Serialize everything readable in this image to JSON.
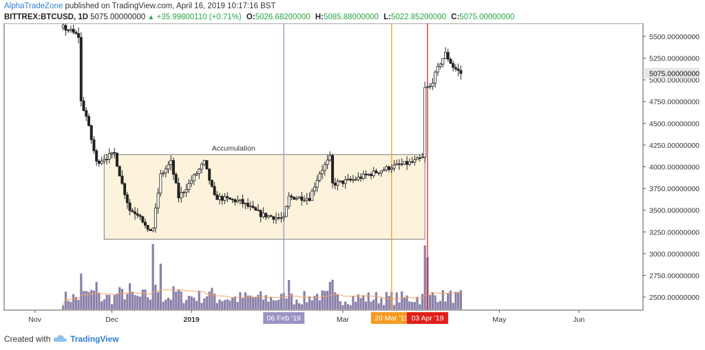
{
  "header": {
    "author": "AlphaTradeZone",
    "published_text": "published on TradingView.com, April 16, 2019 10:17:16 BST",
    "symbol": "BITTREX:BTCUSD, 1D",
    "last": "5075.00000000",
    "change": "+35.99800110 (+0.71%)",
    "open_label": "O:",
    "open": "5026.68200000",
    "high_label": "H:",
    "high": "5085.88000000",
    "low_label": "L:",
    "low": "5022.85200000",
    "close_label": "C:",
    "close": "5075.00000000"
  },
  "footer": {
    "created_with": "Created with",
    "brand": "TradingView"
  },
  "colors": {
    "candle": "#222222",
    "volume": "#8a7fa8",
    "volume_ma": "#f5a25d",
    "zone_fill": "#fdf3dc",
    "zone_border": "#8c8c8c",
    "line_feb": "#9b93c4",
    "line_mar20": "#f59a23",
    "line_apr03": "#e0201b",
    "badge_feb": "#6a5aa5",
    "badge_mar20": "#f59a23",
    "badge_apr03": "#e0201b"
  },
  "chart_data": {
    "type": "candlestick",
    "ylim": [
      2350,
      5650
    ],
    "y_ticks": [
      2500,
      2750,
      3000,
      3250,
      3500,
      3750,
      4000,
      4250,
      4500,
      4750,
      5000,
      5250,
      5500
    ],
    "y_tick_labels": [
      "2500.00000000",
      "2750.00000000",
      "3000.00000000",
      "3250.00000000",
      "3500.00000000",
      "3750.00000000",
      "4000.00000000",
      "4250.00000000",
      "4500.00000000",
      "4750.00000000",
      "5000.00000000",
      "5250.00000000",
      "5500.00000000"
    ],
    "last_price": 5075,
    "last_price_label": "5075.00000000",
    "x_start": "2018-10-20",
    "x_end": "2019-06-26",
    "x_labels": [
      {
        "date": "2018-11-01",
        "text": "Nov",
        "bold": false
      },
      {
        "date": "2018-12-01",
        "text": "Dec",
        "bold": false
      },
      {
        "date": "2019-01-01",
        "text": "2019",
        "bold": true
      },
      {
        "date": "2019-03-01",
        "text": "Mar",
        "bold": false
      },
      {
        "date": "2019-05-01",
        "text": "May",
        "bold": false
      },
      {
        "date": "2019-06-01",
        "text": "Jun",
        "bold": false
      }
    ],
    "price_path": [
      {
        "date": "2018-11-12",
        "price": 5600
      },
      {
        "date": "2018-11-15",
        "price": 5560
      },
      {
        "date": "2018-11-18",
        "price": 5500
      },
      {
        "date": "2018-11-19",
        "price": 4750
      },
      {
        "date": "2018-11-21",
        "price": 4580
      },
      {
        "date": "2018-11-25",
        "price": 4050
      },
      {
        "date": "2018-11-28",
        "price": 4100
      },
      {
        "date": "2018-12-02",
        "price": 4150
      },
      {
        "date": "2018-12-05",
        "price": 3800
      },
      {
        "date": "2018-12-08",
        "price": 3500
      },
      {
        "date": "2018-12-12",
        "price": 3450
      },
      {
        "date": "2018-12-15",
        "price": 3250
      },
      {
        "date": "2018-12-17",
        "price": 3300
      },
      {
        "date": "2018-12-20",
        "price": 3900
      },
      {
        "date": "2018-12-24",
        "price": 4050
      },
      {
        "date": "2018-12-27",
        "price": 3650
      },
      {
        "date": "2018-12-31",
        "price": 3800
      },
      {
        "date": "2019-01-06",
        "price": 4050
      },
      {
        "date": "2019-01-10",
        "price": 3650
      },
      {
        "date": "2019-01-20",
        "price": 3600
      },
      {
        "date": "2019-01-28",
        "price": 3450
      },
      {
        "date": "2019-02-06",
        "price": 3400
      },
      {
        "date": "2019-02-08",
        "price": 3650
      },
      {
        "date": "2019-02-16",
        "price": 3640
      },
      {
        "date": "2019-02-20",
        "price": 3930
      },
      {
        "date": "2019-02-24",
        "price": 4100
      },
      {
        "date": "2019-02-25",
        "price": 3800
      },
      {
        "date": "2019-03-05",
        "price": 3850
      },
      {
        "date": "2019-03-10",
        "price": 3900
      },
      {
        "date": "2019-03-20",
        "price": 4000
      },
      {
        "date": "2019-03-28",
        "price": 4050
      },
      {
        "date": "2019-04-01",
        "price": 4100
      },
      {
        "date": "2019-04-02",
        "price": 4900
      },
      {
        "date": "2019-04-04",
        "price": 4920
      },
      {
        "date": "2019-04-08",
        "price": 5200
      },
      {
        "date": "2019-04-10",
        "price": 5300
      },
      {
        "date": "2019-04-13",
        "price": 5150
      },
      {
        "date": "2019-04-16",
        "price": 5075
      }
    ],
    "volume_spikes": [
      {
        "date": "2018-11-19",
        "level": 0.55
      },
      {
        "date": "2018-11-25",
        "level": 0.42
      },
      {
        "date": "2018-12-08",
        "level": 0.4
      },
      {
        "date": "2018-12-17",
        "level": 1.0
      },
      {
        "date": "2018-12-20",
        "level": 0.7
      },
      {
        "date": "2019-02-08",
        "level": 0.45
      },
      {
        "date": "2019-02-24",
        "level": 0.42
      },
      {
        "date": "2019-04-02",
        "level": 0.98
      },
      {
        "date": "2019-04-03",
        "level": 0.8
      }
    ],
    "zone": {
      "label": "Accumulation",
      "x_from": "2018-11-28",
      "x_to": "2019-04-02",
      "y_low": 3165,
      "y_high": 4140
    },
    "markers": [
      {
        "date": "2019-02-06",
        "label": "06 Feb '19",
        "color_key": "line_feb"
      },
      {
        "date": "2019-03-20",
        "label": "20 Mar '19",
        "color_key": "line_mar20"
      },
      {
        "date": "2019-04-03",
        "label": "03 Apr '19",
        "color_key": "line_apr03"
      }
    ]
  }
}
